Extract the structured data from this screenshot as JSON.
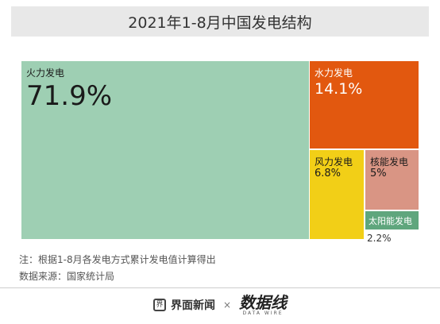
{
  "title": "2021年1-8月中国发电结构",
  "chart_data": {
    "type": "treemap",
    "items": [
      {
        "name": "火力发电",
        "value": 71.9,
        "label": "71.9%",
        "color": "#9ecfb3"
      },
      {
        "name": "水力发电",
        "value": 14.1,
        "label": "14.1%",
        "color": "#e2580f"
      },
      {
        "name": "风力发电",
        "value": 6.8,
        "label": "6.8%",
        "color": "#f2cf17"
      },
      {
        "name": "核能发电",
        "value": 5,
        "label": "5%",
        "color": "#d99584"
      },
      {
        "name": "太阳能发电",
        "value": 2.2,
        "label": "2.2%",
        "color": "#5fa67d"
      }
    ]
  },
  "notes": {
    "note": "注：根据1-8月各发电方式累计发电值计算得出",
    "source": "数据来源：国家统计局"
  },
  "footer": {
    "brand1": "界面新闻",
    "brand1_icon": "界",
    "times": "×",
    "brand2": "数据线",
    "brand2_sub": "DATA WIRE"
  }
}
